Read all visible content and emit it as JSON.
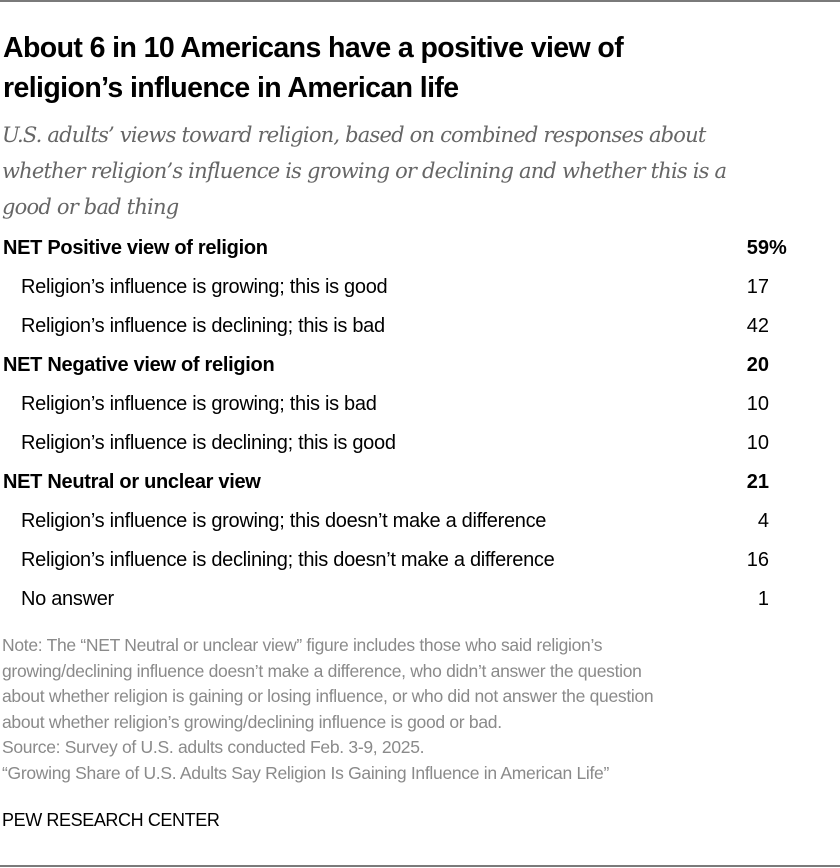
{
  "title": "About 6 in 10 Americans have a positive view of religion’s influence in American life",
  "title_lines": [
    "About 6 in 10 Americans have a positive view of",
    "religion’s influence in American life"
  ],
  "subtitle_lines": [
    "U.S. adults’ views toward religion, based on combined responses about",
    "whether religion’s influence is growing or declining and whether this is a",
    "good or bad thing"
  ],
  "chart_data": {
    "type": "table",
    "title": "About 6 in 10 Americans have a positive view of religion’s influence in American life",
    "subtitle": "U.S. adults’ views toward religion, based on combined responses about whether religion’s influence is growing or declining and whether this is a good or bad thing",
    "unit": "%",
    "rows": [
      {
        "label": "NET Positive view of religion",
        "value": 59,
        "display": "59",
        "suffix": "%",
        "level": "net"
      },
      {
        "label": "Religion’s influence is growing; this is good",
        "value": 17,
        "display": "17",
        "suffix": "",
        "level": "sub"
      },
      {
        "label": "Religion’s influence is declining; this is bad",
        "value": 42,
        "display": "42",
        "suffix": "",
        "level": "sub"
      },
      {
        "label": "NET Negative view of religion",
        "value": 20,
        "display": "20",
        "suffix": "",
        "level": "net"
      },
      {
        "label": "Religion’s influence is growing; this is bad",
        "value": 10,
        "display": "10",
        "suffix": "",
        "level": "sub"
      },
      {
        "label": "Religion’s influence is declining; this is good",
        "value": 10,
        "display": "10",
        "suffix": "",
        "level": "sub"
      },
      {
        "label": "NET Neutral or unclear view",
        "value": 21,
        "display": "21",
        "suffix": "",
        "level": "net"
      },
      {
        "label": "Religion’s influence is growing; this doesn’t make a difference",
        "value": 4,
        "display": "4",
        "suffix": "",
        "level": "sub"
      },
      {
        "label": "Religion’s influence is declining; this doesn’t make a difference",
        "value": 16,
        "display": "16",
        "suffix": "",
        "level": "sub"
      },
      {
        "label": "No answer",
        "value": 1,
        "display": "1",
        "suffix": "",
        "level": "sub"
      }
    ]
  },
  "note_lines": [
    "Note: The “NET Neutral or unclear view” figure includes those who said religion’s",
    "growing/declining influence doesn’t make a difference, who didn’t answer the question",
    "about whether religion is gaining or losing influence, or who did not answer the question",
    "about whether religion’s growing/declining influence is good or bad."
  ],
  "source": "Source: Survey of U.S. adults conducted Feb. 3-9, 2025.",
  "report_title": "“Growing Share of U.S. Adults Say Religion Is Gaining Influence in American Life”",
  "brand": "PEW RESEARCH CENTER",
  "colors": {
    "text": "#000000",
    "subtitle": "#666666",
    "note": "#8a8a8a",
    "rule": "#7a7a7a"
  }
}
